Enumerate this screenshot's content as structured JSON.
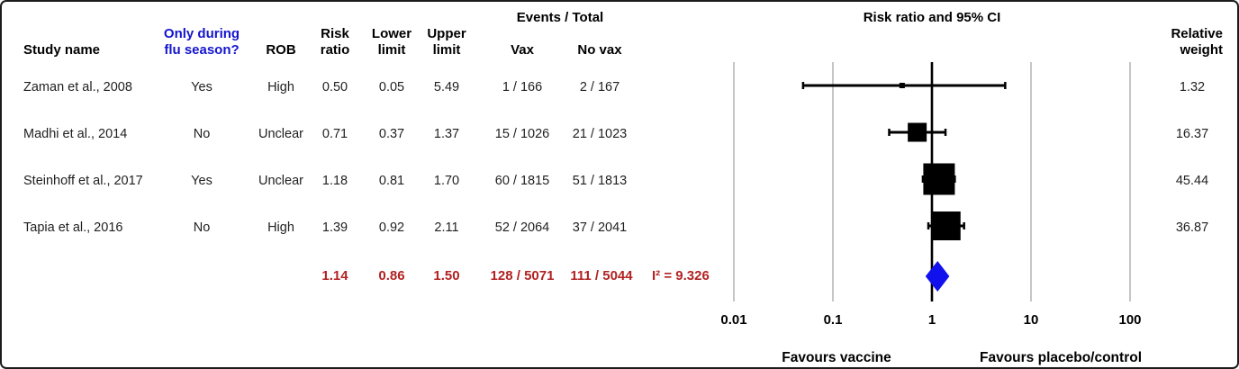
{
  "table": {
    "headers": {
      "study": "Study name",
      "flu_line1": "Only during",
      "flu_line2": "flu season?",
      "rob": "ROB",
      "rr_line1": "Risk",
      "rr_line2": "ratio",
      "lower_line1": "Lower",
      "lower_line2": "limit",
      "upper_line1": "Upper",
      "upper_line2": "limit",
      "events_total": "Events / Total",
      "vax": "Vax",
      "novax": "No vax",
      "plot_title": "Risk ratio and 95% CI",
      "weight_line1": "Relative",
      "weight_line2": "weight"
    },
    "rows": [
      {
        "study": "Zaman  et al., 2008",
        "flu": "Yes",
        "rob": "High",
        "rr": "0.50",
        "lower": "0.05",
        "upper": "5.49",
        "vax": "1 / 166",
        "novax": "2 / 167",
        "weight": "1.32"
      },
      {
        "study": "Madhi et al., 2014",
        "flu": "No",
        "rob": "Unclear",
        "rr": "0.71",
        "lower": "0.37",
        "upper": "1.37",
        "vax": "15 / 1026",
        "novax": "21 / 1023",
        "weight": "16.37"
      },
      {
        "study": "Steinhoff et al., 2017",
        "flu": "Yes",
        "rob": "Unclear",
        "rr": "1.18",
        "lower": "0.81",
        "upper": "1.70",
        "vax": "60 / 1815",
        "novax": "51 / 1813",
        "weight": "45.44"
      },
      {
        "study": "Tapia  et al., 2016",
        "flu": "No",
        "rob": "High",
        "rr": "1.39",
        "lower": "0.92",
        "upper": "2.11",
        "vax": "52 / 2064",
        "novax": "37 / 2041",
        "weight": "36.87"
      }
    ],
    "summary": {
      "rr": "1.14",
      "lower": "0.86",
      "upper": "1.50",
      "vax": "128 / 5071",
      "novax": "111 / 5044",
      "heterogeneity": "I² = 9.326"
    }
  },
  "axis": {
    "ticks": [
      "0.01",
      "0.1",
      "1",
      "10",
      "100"
    ],
    "favours_left": "Favours vaccine",
    "favours_right": "Favours placebo/control"
  },
  "colors": {
    "text": "#1f1f1f",
    "blue_text": "#1414cf",
    "red_text": "#b22222",
    "diamond_fill": "#1111ee",
    "marker_fill": "#000000",
    "gridline": "#c6c6c6",
    "axis_line": "#000000"
  },
  "chart_data": {
    "type": "scatter",
    "subtype": "forest-plot",
    "title": "Risk ratio and 95% CI",
    "x_scale": "log",
    "x_ticks": [
      0.01,
      0.1,
      1,
      10,
      100
    ],
    "xlim": [
      0.01,
      100
    ],
    "reference_line": 1,
    "grid": "vertical-ticks-only",
    "legend_position": "none",
    "studies": [
      {
        "name": "Zaman et al., 2008",
        "flu_season_only": "Yes",
        "rob": "High",
        "rr": 0.5,
        "ci_low": 0.05,
        "ci_high": 5.49,
        "events_vax": "1 / 166",
        "events_novax": "2 / 167",
        "weight": 1.32
      },
      {
        "name": "Madhi et al., 2014",
        "flu_season_only": "No",
        "rob": "Unclear",
        "rr": 0.71,
        "ci_low": 0.37,
        "ci_high": 1.37,
        "events_vax": "15 / 1026",
        "events_novax": "21 / 1023",
        "weight": 16.37
      },
      {
        "name": "Steinhoff et al., 2017",
        "flu_season_only": "Yes",
        "rob": "Unclear",
        "rr": 1.18,
        "ci_low": 0.81,
        "ci_high": 1.7,
        "events_vax": "60 / 1815",
        "events_novax": "51 / 1813",
        "weight": 45.44
      },
      {
        "name": "Tapia et al., 2016",
        "flu_season_only": "No",
        "rob": "High",
        "rr": 1.39,
        "ci_low": 0.92,
        "ci_high": 2.11,
        "events_vax": "52 / 2064",
        "events_novax": "37 / 2041",
        "weight": 36.87
      }
    ],
    "summary": {
      "rr": 1.14,
      "ci_low": 0.86,
      "ci_high": 1.5,
      "events_vax": "128 / 5071",
      "events_novax": "111 / 5044",
      "i_squared": 9.326
    },
    "annotations": {
      "below_left": "Favours vaccine",
      "below_right": "Favours placebo/control"
    }
  }
}
